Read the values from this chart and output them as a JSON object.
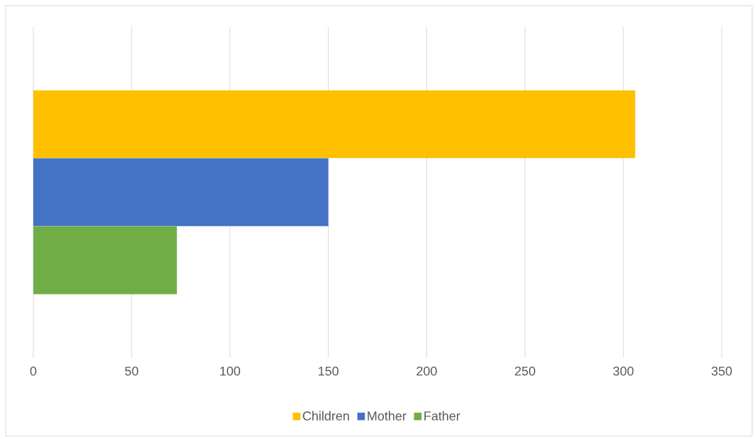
{
  "chart_data": {
    "type": "bar",
    "orientation": "horizontal",
    "categories": [
      null
    ],
    "series": [
      {
        "name": "Children",
        "color": "#ffc000",
        "values": [
          306
        ]
      },
      {
        "name": "Mother",
        "color": "#4472c4",
        "values": [
          150
        ]
      },
      {
        "name": "Father",
        "color": "#70ad47",
        "values": [
          73
        ]
      }
    ],
    "xlim": [
      0,
      350
    ],
    "xticks": [
      0,
      50,
      100,
      150,
      200,
      250,
      300,
      350
    ],
    "grid": "x",
    "legend": "bottom"
  }
}
